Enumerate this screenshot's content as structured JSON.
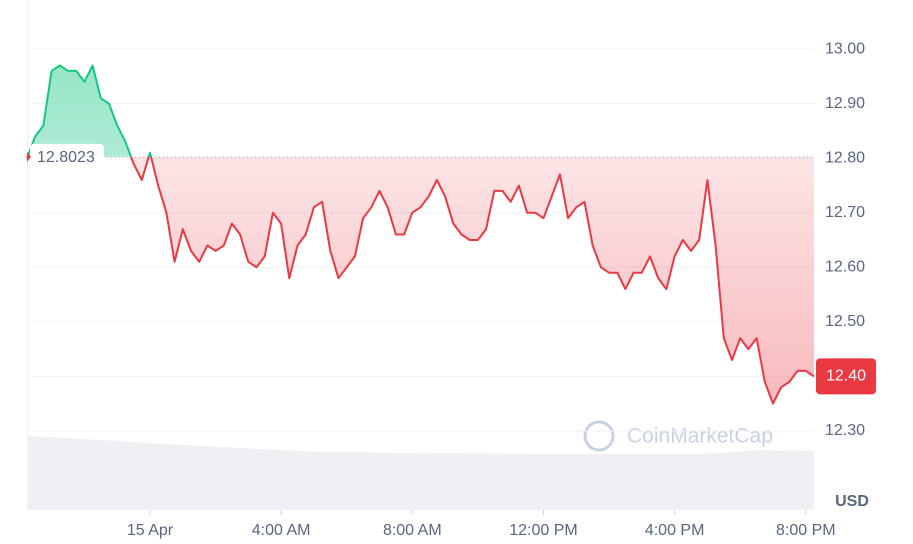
{
  "chart_data": {
    "type": "line",
    "baseline": 12.8023,
    "current_price_label": "12.40",
    "y_unit": "USD",
    "watermark": "CoinMarketCap",
    "up_color": "#16c784",
    "down_color": "#ea3943",
    "grid": true,
    "xlim": [
      -3.75,
      20.25
    ],
    "xticks": [
      {
        "value": 0,
        "label": "15 Apr"
      },
      {
        "value": 4,
        "label": "4:00 AM"
      },
      {
        "value": 8,
        "label": "8:00 AM"
      },
      {
        "value": 12,
        "label": "12:00 PM"
      },
      {
        "value": 16,
        "label": "4:00 PM"
      },
      {
        "value": 20,
        "label": "8:00 PM"
      }
    ],
    "ylim": [
      12.155,
      13.09
    ],
    "yticks": [
      {
        "value": 12.3,
        "label": "12.30"
      },
      {
        "value": 12.4,
        "label": "12.40"
      },
      {
        "value": 12.5,
        "label": "12.50"
      },
      {
        "value": 12.6,
        "label": "12.60"
      },
      {
        "value": 12.7,
        "label": "12.70"
      },
      {
        "value": 12.8,
        "label": "12.80"
      },
      {
        "value": 12.9,
        "label": "12.90"
      },
      {
        "value": 13,
        "label": "13.00"
      }
    ],
    "x": [
      -3.75,
      -3.5,
      -3.25,
      -3,
      -2.75,
      -2.5,
      -2.25,
      -2,
      -1.75,
      -1.5,
      -1.25,
      -1,
      -0.75,
      -0.5,
      -0.25,
      0,
      0.25,
      0.5,
      0.75,
      1,
      1.25,
      1.5,
      1.75,
      2,
      2.25,
      2.5,
      2.75,
      3,
      3.25,
      3.5,
      3.75,
      4,
      4.25,
      4.5,
      4.75,
      5,
      5.25,
      5.5,
      5.75,
      6,
      6.25,
      6.5,
      6.75,
      7,
      7.25,
      7.5,
      7.75,
      8,
      8.25,
      8.5,
      8.75,
      9,
      9.25,
      9.5,
      9.75,
      10,
      10.25,
      10.5,
      10.75,
      11,
      11.25,
      11.5,
      11.75,
      12,
      12.25,
      12.5,
      12.75,
      13,
      13.25,
      13.5,
      13.75,
      14,
      14.25,
      14.5,
      14.75,
      15,
      15.25,
      15.5,
      15.75,
      16,
      16.25,
      16.5,
      16.75,
      17,
      17.25,
      17.5,
      17.75,
      18,
      18.25,
      18.5,
      18.75,
      19,
      19.25,
      19.5,
      19.75,
      20,
      20.25
    ],
    "series": [
      {
        "values": [
          12.8,
          12.84,
          12.86,
          12.96,
          12.97,
          12.96,
          12.96,
          12.94,
          12.97,
          12.91,
          12.9,
          12.86,
          12.83,
          12.79,
          12.76,
          12.81,
          12.75,
          12.7,
          12.61,
          12.67,
          12.63,
          12.61,
          12.64,
          12.63,
          12.64,
          12.68,
          12.66,
          12.61,
          12.6,
          12.62,
          12.7,
          12.68,
          12.58,
          12.64,
          12.66,
          12.71,
          12.72,
          12.63,
          12.58,
          12.6,
          12.62,
          12.69,
          12.71,
          12.74,
          12.71,
          12.66,
          12.66,
          12.7,
          12.71,
          12.73,
          12.76,
          12.73,
          12.68,
          12.66,
          12.65,
          12.65,
          12.67,
          12.74,
          12.74,
          12.72,
          12.75,
          12.7,
          12.7,
          12.69,
          12.73,
          12.77,
          12.69,
          12.71,
          12.72,
          12.64,
          12.6,
          12.59,
          12.59,
          12.56,
          12.59,
          12.59,
          12.62,
          12.58,
          12.56,
          12.62,
          12.65,
          12.63,
          12.65,
          12.76,
          12.64,
          12.47,
          12.43,
          12.47,
          12.45,
          12.47,
          12.39,
          12.35,
          12.38,
          12.39,
          12.41,
          12.41,
          12.4
        ]
      }
    ]
  }
}
